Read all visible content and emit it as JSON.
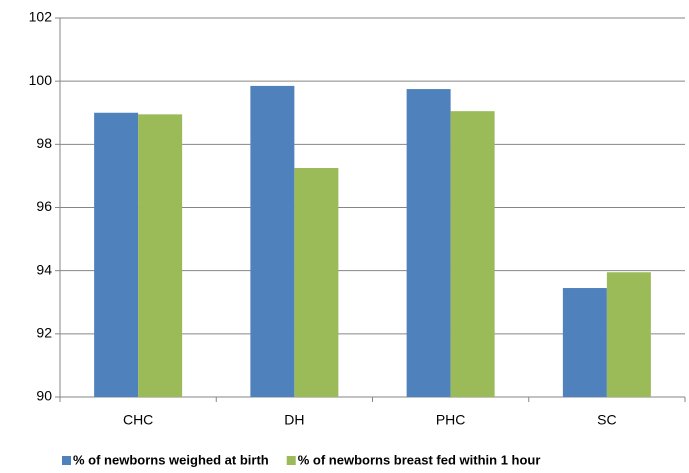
{
  "chart_data": {
    "type": "bar",
    "categories": [
      "CHC",
      "DH",
      "PHC",
      "SC"
    ],
    "series": [
      {
        "name": "% of newborns weighed at birth",
        "color": "#4f81bd",
        "values": [
          99.0,
          99.85,
          99.75,
          93.45
        ]
      },
      {
        "name": "% of newborns breast fed within 1 hour",
        "color": "#9bbb59",
        "values": [
          98.95,
          97.25,
          99.05,
          93.95
        ]
      }
    ],
    "ylim": [
      90,
      102
    ],
    "yticks": [
      90,
      92,
      94,
      96,
      98,
      100,
      102
    ],
    "grid": true,
    "legend": "bottom"
  }
}
